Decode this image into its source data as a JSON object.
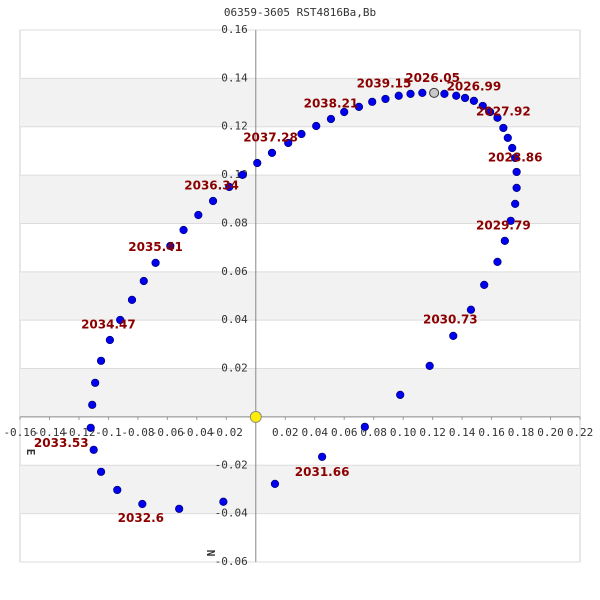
{
  "chart_data": {
    "type": "scatter",
    "title": "06359-3605 RST4816Ba,Bb",
    "x_label": "E",
    "y_label": "N",
    "xlim": [
      -0.16,
      0.22
    ],
    "ylim": [
      -0.06,
      0.16
    ],
    "xticks": [
      -0.16,
      -0.14,
      -0.12,
      -0.1,
      -0.08,
      -0.06,
      -0.04,
      -0.02,
      0.02,
      0.04,
      0.06,
      0.08,
      {
        "value": 0.1,
        "label": "0.10"
      },
      0.12,
      0.14,
      0.16,
      0.18,
      {
        "value": 0.2,
        "label": "0.20"
      },
      0.22
    ],
    "yticks": [
      0.16,
      0.14,
      0.12,
      {
        "value": 0.1,
        "label": "0.10"
      },
      0.08,
      0.06,
      0.04,
      0.02,
      -0.02,
      -0.04,
      -0.06
    ],
    "color": "#0000ee",
    "x": [
      0.113,
      0.105,
      0.097,
      0.088,
      0.079,
      0.07,
      0.06,
      0.051,
      0.041,
      0.031,
      0.022,
      0.011,
      0.001,
      -0.009,
      -0.018,
      -0.029,
      -0.039,
      -0.049,
      -0.058,
      -0.068,
      -0.076,
      -0.084,
      -0.092,
      -0.099,
      -0.105,
      -0.109,
      -0.111,
      -0.112,
      -0.11,
      -0.105,
      -0.094,
      -0.077,
      -0.052,
      -0.022,
      0.013,
      0.045,
      0.074,
      0.098,
      0.118,
      0.134,
      0.146,
      0.155,
      0.164,
      0.169,
      0.173,
      0.176,
      0.177,
      0.177,
      0.176,
      0.174,
      0.171,
      0.168,
      0.164,
      0.159,
      0.154,
      0.148,
      0.142,
      0.136,
      0.128
    ],
    "y": [
      0.134,
      0.1336,
      0.1328,
      0.1315,
      0.1303,
      0.1282,
      0.1261,
      0.1232,
      0.1203,
      0.117,
      0.1133,
      0.1092,
      0.105,
      0.1001,
      0.0951,
      0.0893,
      0.0835,
      0.0773,
      0.0707,
      0.0637,
      0.0562,
      0.0484,
      0.0401,
      0.0318,
      0.0232,
      0.0141,
      0.005,
      -0.0045,
      -0.0136,
      -0.0227,
      -0.0302,
      -0.036,
      -0.038,
      -0.0351,
      -0.0277,
      -0.0165,
      -0.0041,
      0.0091,
      0.0211,
      0.0335,
      0.0443,
      0.0546,
      0.0641,
      0.0728,
      0.0811,
      0.0881,
      0.0947,
      0.1013,
      0.1071,
      0.1112,
      0.1154,
      0.1195,
      0.1237,
      0.1261,
      0.1286,
      0.1307,
      0.1319,
      0.1328,
      0.1336
    ],
    "primary": {
      "x": 0,
      "y": 0,
      "color": "#ffee00"
    },
    "current": {
      "x": 0.121,
      "y": 0.134,
      "color": "#c8c8c8"
    },
    "annotations": [
      {
        "text": "2026.05",
        "x": 0.12,
        "y": 0.14
      },
      {
        "text": "2026.99",
        "x": 0.148,
        "y": 0.1365
      },
      {
        "text": "2027.92",
        "x": 0.168,
        "y": 0.126
      },
      {
        "text": "2028.86",
        "x": 0.176,
        "y": 0.107
      },
      {
        "text": "2029.79",
        "x": 0.168,
        "y": 0.079
      },
      {
        "text": "2030.73",
        "x": 0.132,
        "y": 0.04
      },
      {
        "text": "2031.66",
        "x": 0.045,
        "y": -0.023
      },
      {
        "text": "2032.6",
        "x": -0.078,
        "y": -0.042
      },
      {
        "text": "2033.53",
        "x": -0.132,
        "y": -0.011
      },
      {
        "text": "2034.47",
        "x": -0.1,
        "y": 0.038
      },
      {
        "text": "2035.41",
        "x": -0.068,
        "y": 0.07
      },
      {
        "text": "2036.34",
        "x": -0.03,
        "y": 0.0955
      },
      {
        "text": "2037.28",
        "x": 0.01,
        "y": 0.1154
      },
      {
        "text": "2038.21",
        "x": 0.051,
        "y": 0.1294
      },
      {
        "text": "2039.15",
        "x": 0.087,
        "y": 0.1377
      }
    ]
  }
}
